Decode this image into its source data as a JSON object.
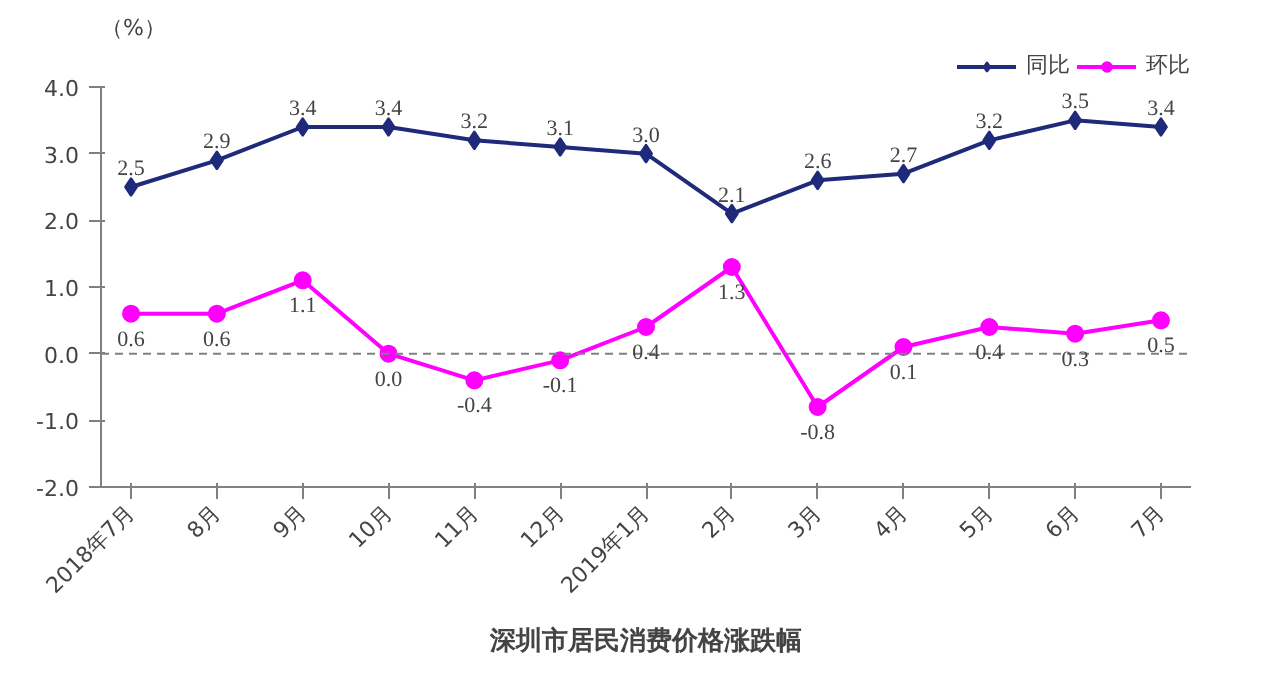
{
  "chart_data": {
    "type": "line",
    "title": "深圳市居民消费价格涨跌幅",
    "ylabel": "（%）",
    "categories": [
      "2018年7月",
      "8月",
      "9月",
      "10月",
      "11月",
      "12月",
      "2019年1月",
      "2月",
      "3月",
      "4月",
      "5月",
      "6月",
      "7月"
    ],
    "series": [
      {
        "name": "同比",
        "color": "#1f2a7a",
        "marker": "diamond",
        "values": [
          2.5,
          2.9,
          3.4,
          3.4,
          3.2,
          3.1,
          3.0,
          2.1,
          2.6,
          2.7,
          3.2,
          3.5,
          3.4
        ],
        "value_labels": [
          "2.5",
          "2.9",
          "3.4",
          "3.4",
          "3.2",
          "3.1",
          "3.0",
          "2.1",
          "2.6",
          "2.7",
          "3.2",
          "3.5",
          "3.4"
        ]
      },
      {
        "name": "环比",
        "color": "#ff00ff",
        "marker": "circle",
        "values": [
          0.6,
          0.6,
          1.1,
          0.0,
          -0.4,
          -0.1,
          0.4,
          1.3,
          -0.8,
          0.1,
          0.4,
          0.3,
          0.5
        ],
        "value_labels": [
          "0.6",
          "0.6",
          "1.1",
          "0.0",
          "-0.4",
          "-0.1",
          "0.4",
          "1.3",
          "-0.8",
          "0.1",
          "0.4",
          "0.3",
          "0.5"
        ]
      }
    ],
    "ylim": [
      -2,
      4
    ],
    "yticks": [
      {
        "value": -2,
        "label": "-2.0"
      },
      {
        "value": -1,
        "label": "-1.0"
      },
      {
        "value": 0,
        "label": "0.0"
      },
      {
        "value": 1,
        "label": "1.0"
      },
      {
        "value": 2,
        "label": "2.0"
      },
      {
        "value": 3,
        "label": "3.0"
      },
      {
        "value": 4,
        "label": "4.0"
      }
    ],
    "ref_lines": [
      {
        "axis": "y",
        "value": 0,
        "color": "#808080",
        "line_style": "dashed"
      }
    ],
    "grid": false,
    "legend": "top right"
  }
}
